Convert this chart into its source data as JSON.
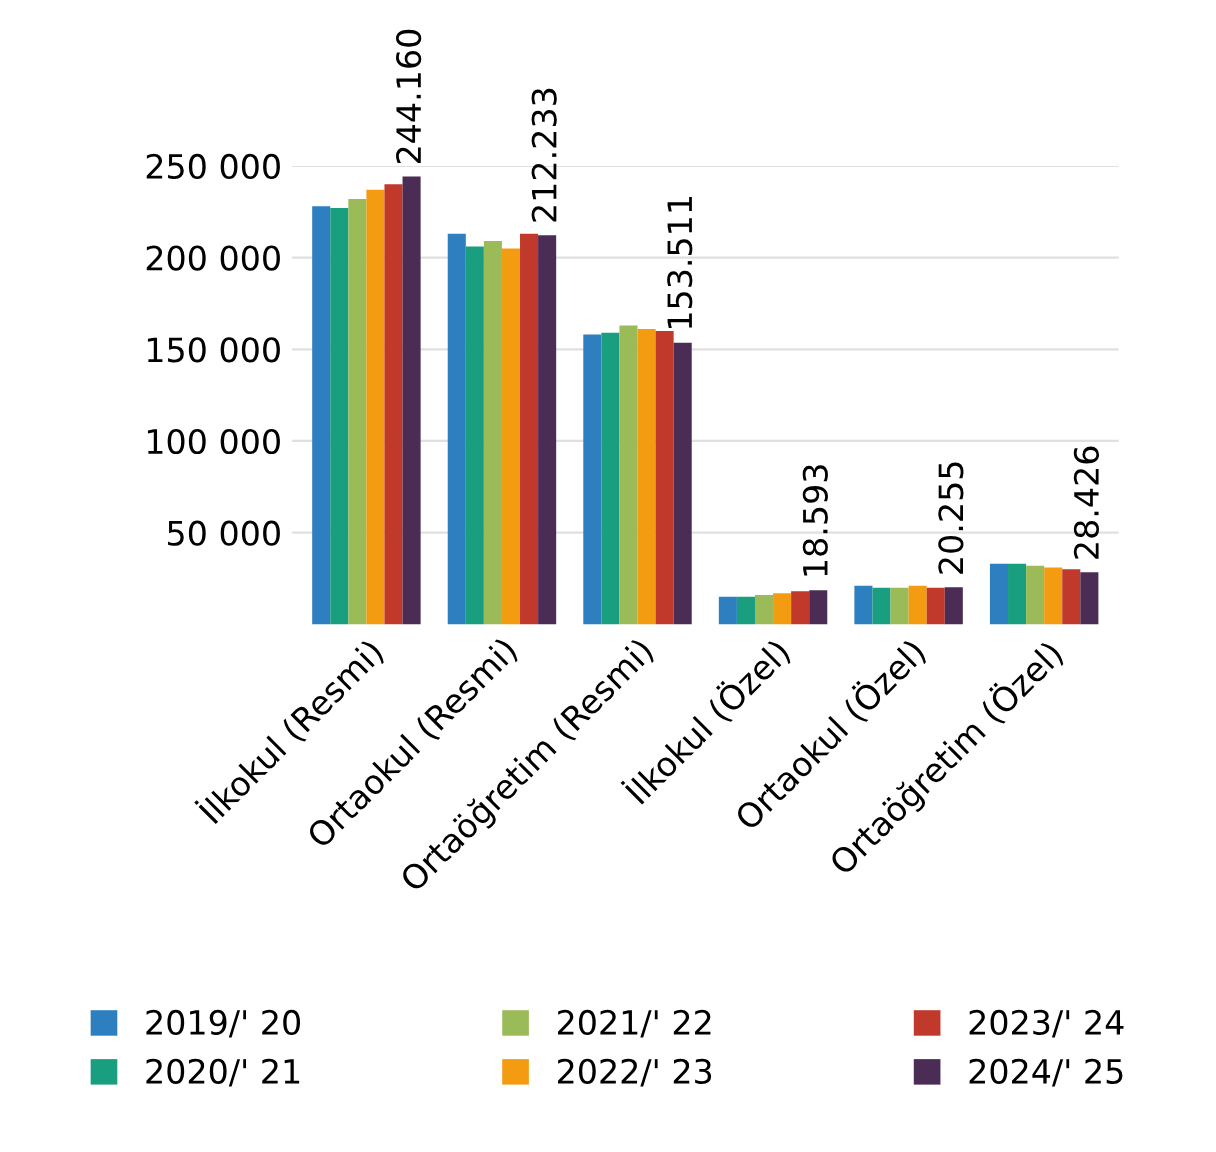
{
  "chart_data": {
    "type": "bar",
    "categories": [
      "İlkokul (Resmi)",
      "Ortaokul (Resmi)",
      "Ortaöğretim (Resmi)",
      "İlkokul (Özel)",
      "Ortaokul (Özel)",
      "Ortaöğretim (Özel)"
    ],
    "series": [
      {
        "name": "2019/' 20",
        "color": "#2e7fc0",
        "values": [
          228000,
          213000,
          158000,
          15000,
          21000,
          33000
        ]
      },
      {
        "name": "2020/' 21",
        "color": "#1a9e80",
        "values": [
          227000,
          206000,
          159000,
          15000,
          20000,
          33000
        ]
      },
      {
        "name": "2021/' 22",
        "color": "#9bbb59",
        "values": [
          232000,
          209000,
          163000,
          16000,
          20000,
          32000
        ]
      },
      {
        "name": "2022/' 23",
        "color": "#f39c12",
        "values": [
          237000,
          205000,
          161000,
          17000,
          21000,
          31000
        ]
      },
      {
        "name": "2023/' 24",
        "color": "#c0392b",
        "values": [
          240000,
          213000,
          160000,
          18000,
          20000,
          30000
        ]
      },
      {
        "name": "2024/' 25",
        "color": "#4a2c54",
        "values": [
          244160,
          212233,
          153511,
          18593,
          20255,
          28426
        ],
        "value_labels": [
          "244.160",
          "212.233",
          "153.511",
          "18.593",
          "20.255",
          "28.426"
        ]
      }
    ],
    "ylim": [
      0,
      250000
    ],
    "yticks": [
      {
        "value": 50000,
        "label": "50 000"
      },
      {
        "value": 100000,
        "label": "100 000"
      },
      {
        "value": 150000,
        "label": "150 000"
      },
      {
        "value": 200000,
        "label": "200 000"
      },
      {
        "value": 250000,
        "label": "250 000"
      }
    ],
    "grid": "y",
    "legend": "bottom"
  }
}
